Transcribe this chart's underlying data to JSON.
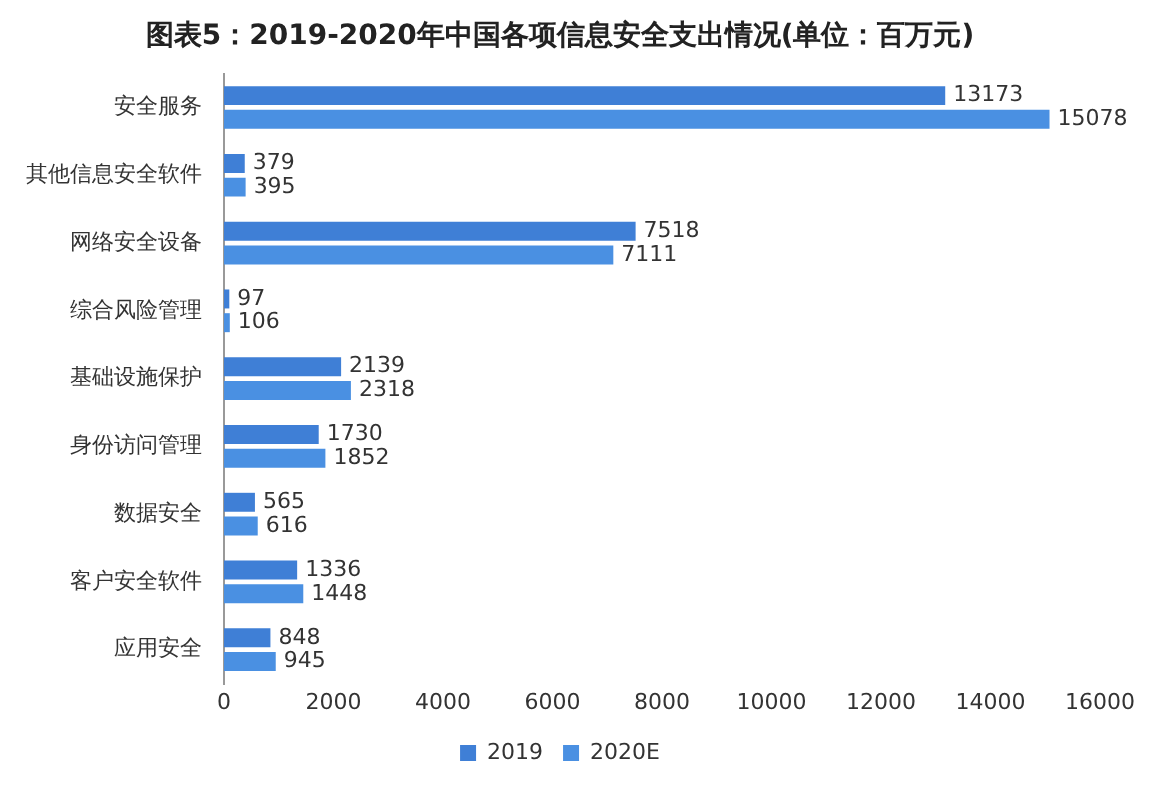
{
  "chart_data": {
    "type": "bar",
    "orientation": "horizontal",
    "title": "图表5：2019-2020年中国各项信息安全支出情况(单位：百万元)",
    "categories": [
      "安全服务",
      "其他信息安全软件",
      "网络安全设备",
      "综合风险管理",
      "基础设施保护",
      "身份访问管理",
      "数据安全",
      "客户安全软件",
      "应用安全"
    ],
    "series": [
      {
        "name": "2019",
        "color": "#3f7fd6",
        "values": [
          13173,
          379,
          7518,
          97,
          2139,
          1730,
          565,
          1336,
          848
        ]
      },
      {
        "name": "2020E",
        "color": "#4a90e2",
        "values": [
          15078,
          395,
          7111,
          106,
          2318,
          1852,
          616,
          1448,
          945
        ]
      }
    ],
    "xlim": [
      0,
      16000
    ],
    "xticks": [
      0,
      2000,
      4000,
      6000,
      8000,
      10000,
      12000,
      14000,
      16000
    ],
    "grid": false,
    "legend": "bottom",
    "data_labels": true
  }
}
